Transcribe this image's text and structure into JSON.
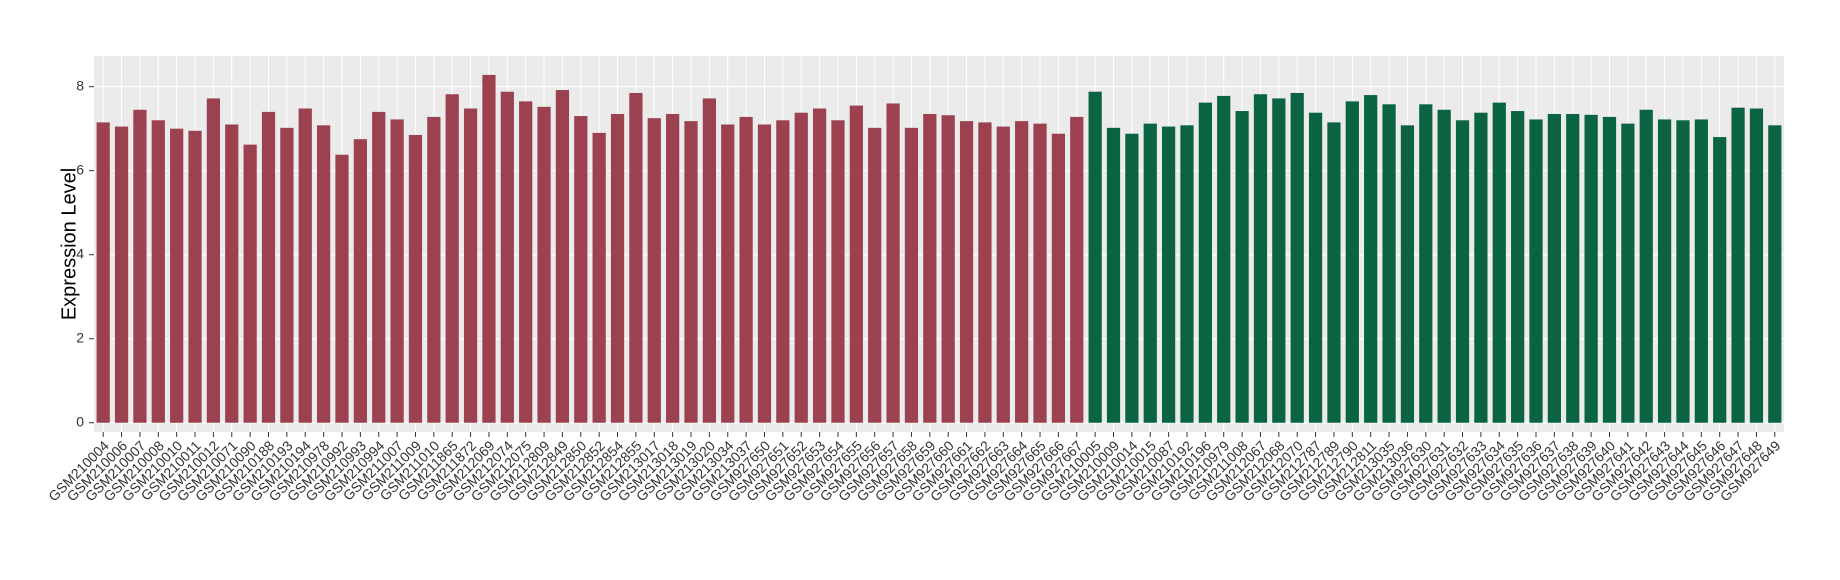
{
  "chart_data": {
    "type": "bar",
    "y_label": "Expression Level",
    "ylim": [
      -0.22,
      8.73
    ],
    "yticks": [
      0,
      2,
      4,
      6,
      8
    ],
    "grid": true,
    "background": "#ebebeb",
    "series": [
      {
        "color": "#9b4150",
        "categories": [
          "GSM210004",
          "GSM210006",
          "GSM210007",
          "GSM210008",
          "GSM210010",
          "GSM210011",
          "GSM210012",
          "GSM210071",
          "GSM210090",
          "GSM210188",
          "GSM210193",
          "GSM210194",
          "GSM210978",
          "GSM210992",
          "GSM210993",
          "GSM210994",
          "GSM211007",
          "GSM211009",
          "GSM211010",
          "GSM211865",
          "GSM211872",
          "GSM212069",
          "GSM212074",
          "GSM212075",
          "GSM212809",
          "GSM212849",
          "GSM212850",
          "GSM212852",
          "GSM212854",
          "GSM212855",
          "GSM213017",
          "GSM213018",
          "GSM213019",
          "GSM213020",
          "GSM213034",
          "GSM213037",
          "GSM927650",
          "GSM927651",
          "GSM927652",
          "GSM927653",
          "GSM927654",
          "GSM927655",
          "GSM927656",
          "GSM927657",
          "GSM927658",
          "GSM927659",
          "GSM927660",
          "GSM927661",
          "GSM927662",
          "GSM927663",
          "GSM927664",
          "GSM927665",
          "GSM927666",
          "GSM927667"
        ],
        "values": [
          7.15,
          7.05,
          7.45,
          7.2,
          7.0,
          6.95,
          7.72,
          7.1,
          6.62,
          7.4,
          7.02,
          7.48,
          7.08,
          6.38,
          6.75,
          7.4,
          7.22,
          6.85,
          7.28,
          7.82,
          7.48,
          8.28,
          7.88,
          7.65,
          7.52,
          7.92,
          7.3,
          6.9,
          7.35,
          7.85,
          7.25,
          7.35,
          7.18,
          7.72,
          7.1,
          7.28,
          7.1,
          7.2,
          7.38,
          7.48,
          7.2,
          7.55,
          7.02,
          7.6,
          7.02,
          7.35,
          7.32,
          7.18,
          7.15,
          7.05,
          7.18,
          7.12,
          6.88,
          7.28
        ]
      },
      {
        "color": "#0b6441",
        "categories": [
          "GSM210005",
          "GSM210009",
          "GSM210014",
          "GSM210015",
          "GSM210087",
          "GSM210192",
          "GSM210196",
          "GSM210979",
          "GSM211008",
          "GSM212067",
          "GSM212068",
          "GSM212070",
          "GSM212787",
          "GSM212789",
          "GSM212790",
          "GSM212811",
          "GSM213035",
          "GSM213036",
          "GSM927630",
          "GSM927631",
          "GSM927632",
          "GSM927633",
          "GSM927634",
          "GSM927635",
          "GSM927636",
          "GSM927637",
          "GSM927638",
          "GSM927639",
          "GSM927640",
          "GSM927641",
          "GSM927642",
          "GSM927643",
          "GSM927644",
          "GSM927645",
          "GSM927646",
          "GSM927647",
          "GSM927648",
          "GSM927649"
        ],
        "values": [
          7.88,
          7.02,
          6.88,
          7.12,
          7.05,
          7.08,
          7.62,
          7.78,
          7.42,
          7.82,
          7.72,
          7.85,
          7.38,
          7.15,
          7.65,
          7.8,
          7.58,
          7.08,
          7.58,
          7.45,
          7.2,
          7.38,
          7.62,
          7.42,
          7.22,
          7.35,
          7.35,
          7.33,
          7.28,
          7.12,
          7.45,
          7.22,
          7.2,
          7.22,
          6.8,
          7.5,
          7.48,
          7.08
        ]
      }
    ]
  }
}
